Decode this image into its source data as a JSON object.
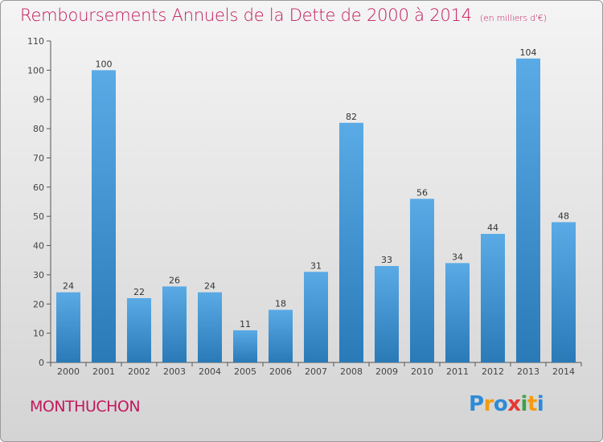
{
  "header": {
    "title": "Remboursements Annuels de la Dette de 2000 à 2014",
    "subtitle": "(en milliers d'€)"
  },
  "footer": {
    "commune": "MONTHUCHON",
    "logo_text": "Proxiti",
    "logo_letters": [
      {
        "ch": "P",
        "color": "#2e8bd6"
      },
      {
        "ch": "r",
        "color": "#f39c12"
      },
      {
        "ch": "o",
        "color": "#2e8bd6"
      },
      {
        "ch": "x",
        "color": "#e53935"
      },
      {
        "ch": "i",
        "color": "#43a047"
      },
      {
        "ch": "t",
        "color": "#f39c12"
      },
      {
        "ch": "i",
        "color": "#2e8bd6"
      }
    ]
  },
  "chart_data": {
    "type": "bar",
    "title": "Remboursements Annuels de la Dette de 2000 à 2014",
    "subtitle": "(en milliers d'€)",
    "categories": [
      "2000",
      "2001",
      "2002",
      "2003",
      "2004",
      "2005",
      "2006",
      "2007",
      "2008",
      "2009",
      "2010",
      "2011",
      "2012",
      "2013",
      "2014"
    ],
    "values": [
      24,
      100,
      22,
      26,
      24,
      11,
      18,
      31,
      82,
      33,
      56,
      34,
      44,
      104,
      48
    ],
    "ylim": [
      0,
      110
    ],
    "yticks": [
      0,
      10,
      20,
      30,
      40,
      50,
      60,
      70,
      80,
      90,
      100,
      110
    ],
    "grid": false,
    "colors": {
      "bar_top": "#5aaae6",
      "bar_bottom": "#2a7ab8",
      "axis": "#555555",
      "title": "#c2185b"
    }
  }
}
